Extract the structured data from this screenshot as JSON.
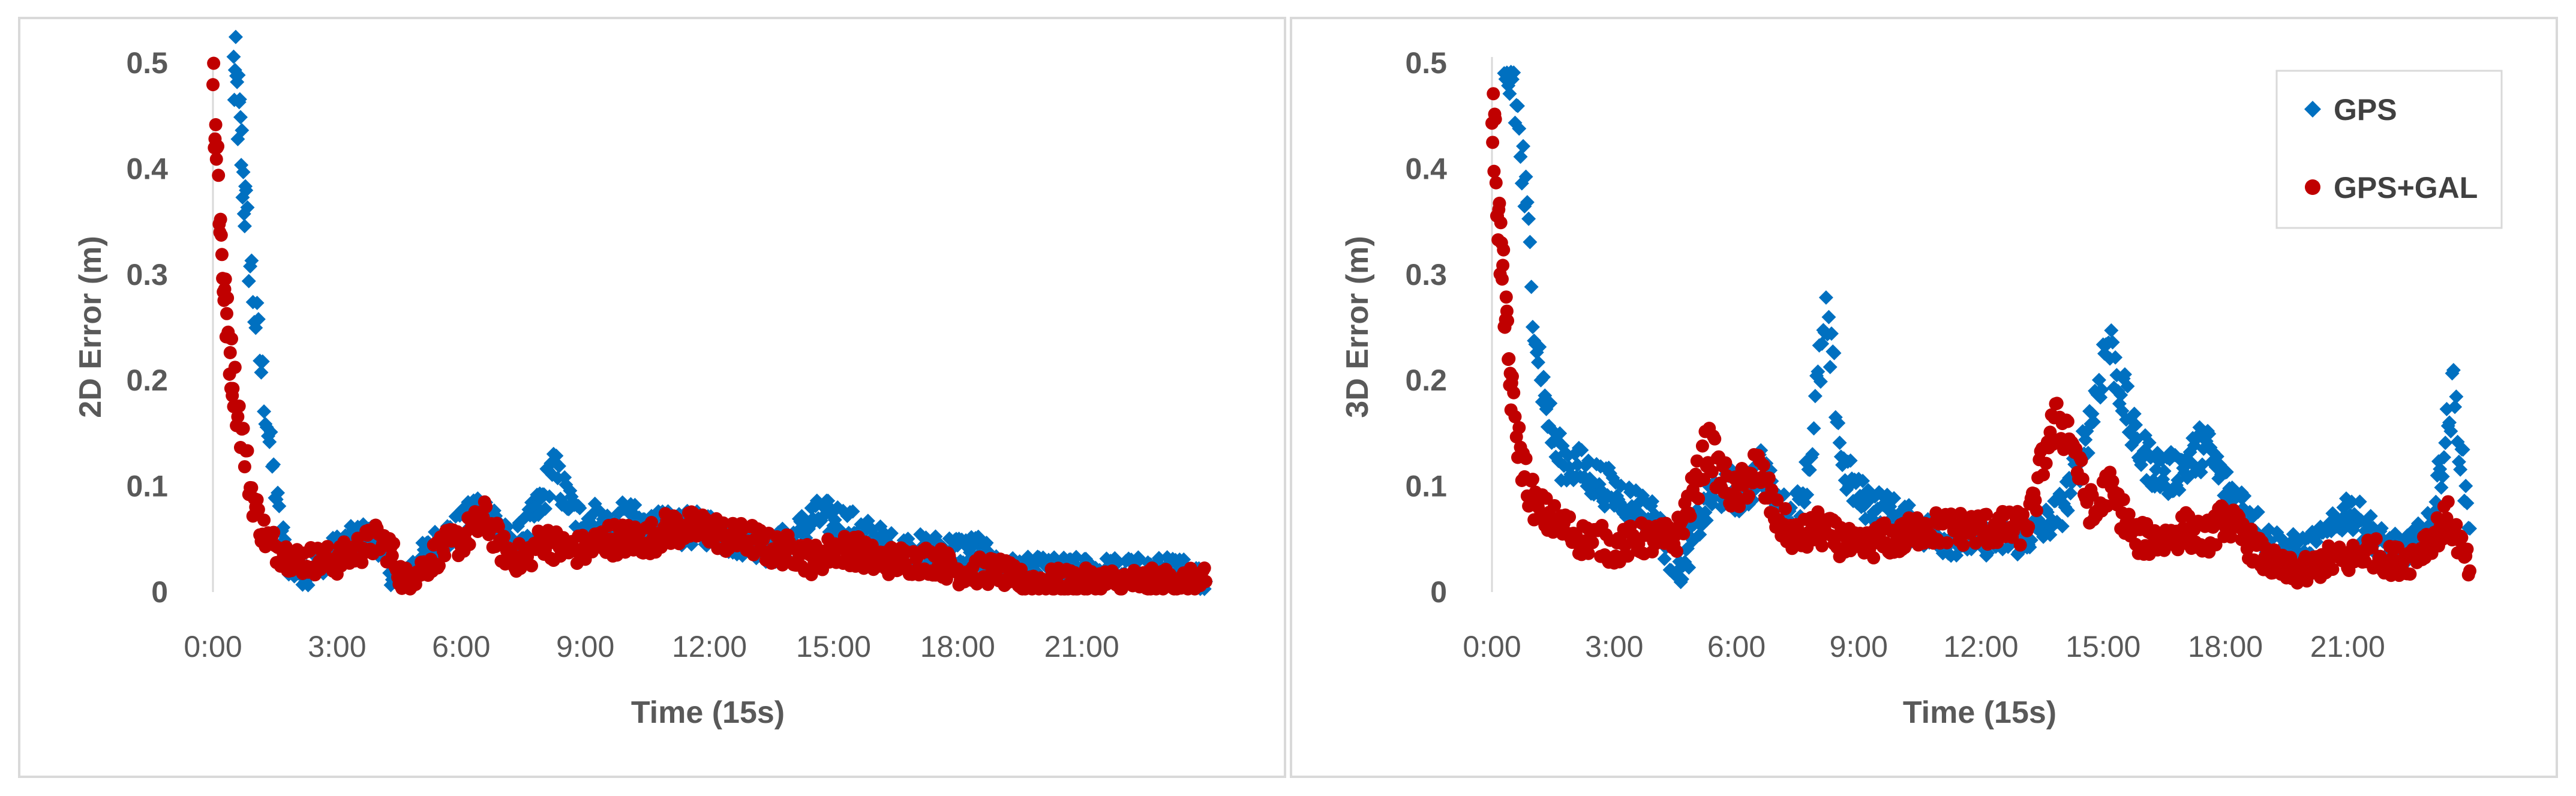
{
  "chart_data": [
    {
      "type": "scatter",
      "x_ticks": [
        "0:00",
        "3:00",
        "6:00",
        "9:00",
        "12:00",
        "15:00",
        "18:00",
        "21:00"
      ],
      "y_ticks": [
        "0",
        "0.1",
        "0.2",
        "0.3",
        "0.4",
        "0.5"
      ],
      "xlabel": "Time (15s)",
      "ylabel": "2D Error (m)",
      "xlim": [
        0,
        24
      ],
      "ylim": [
        0,
        0.5
      ],
      "series": [
        {
          "name": "GPS",
          "color": "#0070C0",
          "marker": "diamond",
          "x": [
            0.5,
            0.6,
            0.7,
            0.8,
            1.0,
            1.2,
            1.4,
            1.6,
            1.8,
            2.0,
            2.3,
            2.6,
            3.0,
            3.5,
            4.0,
            4.3,
            4.5,
            5.0,
            5.5,
            6.0,
            6.4,
            6.8,
            7.2,
            7.6,
            8.0,
            8.2,
            8.4,
            8.8,
            9.2,
            9.6,
            10.0,
            10.5,
            11.0,
            11.5,
            12.0,
            12.5,
            13.0,
            13.5,
            14.0,
            14.5,
            15.0,
            15.5,
            16.0,
            16.5,
            17.0,
            17.5,
            18.0,
            18.5,
            19.0,
            19.5,
            20.0,
            20.5,
            21.0,
            21.5,
            22.0,
            22.5,
            23.0,
            23.5,
            24.0
          ],
          "values": [
            0.49,
            0.46,
            0.41,
            0.35,
            0.27,
            0.2,
            0.13,
            0.07,
            0.03,
            0.02,
            0.02,
            0.03,
            0.04,
            0.05,
            0.05,
            0.02,
            0.01,
            0.03,
            0.05,
            0.06,
            0.08,
            0.07,
            0.04,
            0.06,
            0.09,
            0.12,
            0.1,
            0.07,
            0.07,
            0.06,
            0.07,
            0.06,
            0.06,
            0.06,
            0.06,
            0.05,
            0.05,
            0.04,
            0.05,
            0.07,
            0.07,
            0.06,
            0.05,
            0.04,
            0.04,
            0.04,
            0.04,
            0.04,
            0.02,
            0.02,
            0.02,
            0.02,
            0.02,
            0.02,
            0.02,
            0.02,
            0.02,
            0.02,
            0.01
          ]
        },
        {
          "name": "GPS+GAL",
          "color": "#C00000",
          "marker": "circle",
          "x": [
            0.0,
            0.1,
            0.2,
            0.3,
            0.4,
            0.5,
            0.7,
            0.9,
            1.1,
            1.3,
            1.6,
            2.0,
            2.5,
            3.0,
            3.5,
            4.0,
            4.3,
            4.6,
            5.0,
            5.5,
            6.0,
            6.3,
            6.6,
            7.0,
            7.5,
            8.0,
            8.5,
            9.0,
            9.5,
            10.0,
            10.5,
            11.0,
            11.5,
            12.0,
            12.5,
            13.0,
            13.5,
            14.0,
            14.5,
            15.0,
            15.5,
            16.0,
            16.5,
            17.0,
            17.5,
            18.0,
            18.5,
            19.0,
            19.5,
            20.0,
            20.5,
            21.0,
            21.5,
            22.0,
            22.5,
            23.0,
            23.5,
            24.0
          ],
          "values": [
            0.49,
            0.42,
            0.33,
            0.27,
            0.23,
            0.2,
            0.15,
            0.1,
            0.07,
            0.05,
            0.04,
            0.03,
            0.03,
            0.03,
            0.04,
            0.05,
            0.04,
            0.01,
            0.02,
            0.04,
            0.05,
            0.06,
            0.07,
            0.04,
            0.03,
            0.05,
            0.04,
            0.04,
            0.05,
            0.05,
            0.05,
            0.06,
            0.06,
            0.06,
            0.05,
            0.05,
            0.04,
            0.04,
            0.03,
            0.04,
            0.04,
            0.03,
            0.03,
            0.03,
            0.03,
            0.02,
            0.02,
            0.02,
            0.01,
            0.01,
            0.01,
            0.01,
            0.01,
            0.01,
            0.01,
            0.01,
            0.01,
            0.01
          ]
        }
      ]
    },
    {
      "type": "scatter",
      "x_ticks": [
        "0:00",
        "3:00",
        "6:00",
        "9:00",
        "12:00",
        "15:00",
        "18:00",
        "21:00"
      ],
      "y_ticks": [
        "0",
        "0.1",
        "0.2",
        "0.3",
        "0.4",
        "0.5"
      ],
      "xlabel": "Time (15s)",
      "ylabel": "3D Error (m)",
      "xlim": [
        0,
        24
      ],
      "ylim": [
        0,
        0.5
      ],
      "legend_position": "top-right",
      "series": [
        {
          "name": "GPS",
          "color": "#0070C0",
          "marker": "diamond",
          "x": [
            0.3,
            0.5,
            0.7,
            0.9,
            1.1,
            1.3,
            1.6,
            2.0,
            2.4,
            2.8,
            3.2,
            3.6,
            4.0,
            4.4,
            4.7,
            5.0,
            5.4,
            5.8,
            6.2,
            6.6,
            7.0,
            7.4,
            7.8,
            8.0,
            8.2,
            8.4,
            8.6,
            9.0,
            9.5,
            10.0,
            10.5,
            11.0,
            11.5,
            12.0,
            12.5,
            13.0,
            13.5,
            14.0,
            14.4,
            14.8,
            15.1,
            15.4,
            15.8,
            16.2,
            16.6,
            17.0,
            17.5,
            18.0,
            18.5,
            19.0,
            19.5,
            20.0,
            20.5,
            21.0,
            21.5,
            22.0,
            22.5,
            23.0,
            23.3,
            23.6,
            24.0
          ],
          "values": [
            0.46,
            0.49,
            0.42,
            0.33,
            0.24,
            0.18,
            0.13,
            0.12,
            0.11,
            0.1,
            0.09,
            0.08,
            0.07,
            0.03,
            0.02,
            0.06,
            0.09,
            0.1,
            0.09,
            0.12,
            0.08,
            0.07,
            0.12,
            0.2,
            0.25,
            0.2,
            0.12,
            0.09,
            0.08,
            0.07,
            0.06,
            0.05,
            0.05,
            0.05,
            0.05,
            0.05,
            0.06,
            0.08,
            0.12,
            0.18,
            0.24,
            0.2,
            0.14,
            0.12,
            0.11,
            0.12,
            0.14,
            0.1,
            0.08,
            0.05,
            0.04,
            0.04,
            0.05,
            0.08,
            0.06,
            0.04,
            0.04,
            0.06,
            0.12,
            0.19,
            0.06
          ]
        },
        {
          "name": "GPS+GAL",
          "color": "#C00000",
          "marker": "circle",
          "x": [
            0.0,
            0.1,
            0.2,
            0.3,
            0.4,
            0.5,
            0.7,
            0.9,
            1.1,
            1.4,
            1.8,
            2.2,
            2.6,
            3.0,
            3.5,
            4.0,
            4.5,
            5.0,
            5.3,
            5.6,
            6.0,
            6.5,
            7.0,
            7.5,
            8.0,
            8.5,
            9.0,
            9.5,
            10.0,
            10.5,
            11.0,
            11.5,
            12.0,
            12.5,
            13.0,
            13.3,
            13.6,
            13.9,
            14.2,
            14.5,
            14.8,
            15.1,
            15.4,
            15.8,
            16.2,
            16.6,
            17.0,
            17.5,
            18.0,
            18.5,
            19.0,
            19.5,
            20.0,
            20.5,
            21.0,
            21.5,
            22.0,
            22.5,
            23.0,
            23.5,
            24.0
          ],
          "values": [
            0.46,
            0.4,
            0.33,
            0.28,
            0.22,
            0.18,
            0.13,
            0.1,
            0.08,
            0.07,
            0.06,
            0.05,
            0.05,
            0.04,
            0.05,
            0.05,
            0.05,
            0.1,
            0.14,
            0.11,
            0.09,
            0.12,
            0.07,
            0.05,
            0.06,
            0.05,
            0.04,
            0.05,
            0.05,
            0.06,
            0.06,
            0.06,
            0.06,
            0.06,
            0.06,
            0.08,
            0.14,
            0.16,
            0.15,
            0.1,
            0.07,
            0.1,
            0.08,
            0.05,
            0.05,
            0.05,
            0.06,
            0.05,
            0.07,
            0.05,
            0.03,
            0.02,
            0.02,
            0.03,
            0.03,
            0.04,
            0.03,
            0.03,
            0.05,
            0.07,
            0.02
          ]
        }
      ]
    }
  ]
}
